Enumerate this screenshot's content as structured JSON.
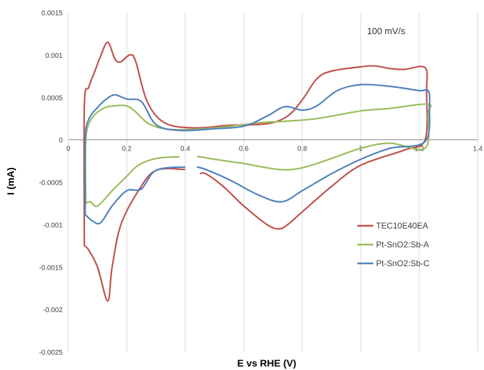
{
  "chart_data": {
    "type": "line",
    "title": "",
    "xlabel": "E vs RHE (V)",
    "ylabel": "I (mA)",
    "annotation": "100 mV/s",
    "xlim": [
      0,
      1.4
    ],
    "ylim": [
      -0.0025,
      0.0015
    ],
    "x_ticks": [
      0,
      0.2,
      0.4,
      0.6,
      0.8,
      1,
      1.2,
      1.4
    ],
    "x_tick_labels": [
      "0",
      "0.2",
      "0.4",
      "0.6",
      "0.8",
      "1",
      "1.2",
      "1.4"
    ],
    "y_ticks": [
      0.0015,
      0.001,
      0.0005,
      0,
      -0.0005,
      -0.001,
      -0.0015,
      -0.002,
      -0.0025
    ],
    "y_tick_labels": [
      "0.0015",
      "0.001",
      "0.0005",
      "0",
      "-0.0005",
      "-0.001",
      "-0.0015",
      "-0.002",
      "-0.0025"
    ],
    "grid": "vertical",
    "legend_position": "right",
    "series": [
      {
        "name": "TEC10E40EA",
        "color": "#c0504d",
        "points": [
          [
            0.055,
            -0.00125
          ],
          [
            0.055,
            0.0004
          ],
          [
            0.07,
            0.00062
          ],
          [
            0.09,
            0.0008
          ],
          [
            0.11,
            0.00098
          ],
          [
            0.135,
            0.00115
          ],
          [
            0.16,
            0.00095
          ],
          [
            0.18,
            0.00092
          ],
          [
            0.21,
            0.001
          ],
          [
            0.23,
            0.00093
          ],
          [
            0.27,
            0.00045
          ],
          [
            0.33,
            0.0002
          ],
          [
            0.43,
            0.00014
          ],
          [
            0.55,
            0.00017
          ],
          [
            0.68,
            0.00019
          ],
          [
            0.75,
            0.00028
          ],
          [
            0.8,
            0.00047
          ],
          [
            0.85,
            0.00072
          ],
          [
            0.9,
            0.00081
          ],
          [
            1.0,
            0.00086
          ],
          [
            1.05,
            0.00087
          ],
          [
            1.1,
            0.00084
          ],
          [
            1.15,
            0.00083
          ],
          [
            1.22,
            0.00085
          ],
          [
            1.225,
            0.00058
          ],
          [
            1.22,
            0.0
          ],
          [
            1.15,
            -0.00012
          ],
          [
            1.0,
            -0.0003
          ],
          [
            0.9,
            -0.00055
          ],
          [
            0.8,
            -0.00085
          ],
          [
            0.75,
            -0.001
          ],
          [
            0.72,
            -0.00105
          ],
          [
            0.68,
            -0.001
          ],
          [
            0.6,
            -0.00078
          ],
          [
            0.53,
            -0.00055
          ],
          [
            0.47,
            -0.0004
          ],
          [
            0.45,
            -0.0004
          ]
        ],
        "points_upper_left": [
          [
            0.4,
            -0.00035
          ],
          [
            0.3,
            -0.00036
          ],
          [
            0.24,
            -0.0006
          ],
          [
            0.18,
            -0.001
          ],
          [
            0.15,
            -0.0015
          ],
          [
            0.135,
            -0.0019
          ],
          [
            0.1,
            -0.0015
          ],
          [
            0.07,
            -0.0013
          ],
          [
            0.055,
            -0.00125
          ]
        ]
      },
      {
        "name": "Pt-SnO2:Sb-A",
        "color": "#9bbb59",
        "points": [
          [
            0.06,
            -0.00075
          ],
          [
            0.06,
            0.0
          ],
          [
            0.08,
            0.00025
          ],
          [
            0.12,
            0.00037
          ],
          [
            0.16,
            0.0004
          ],
          [
            0.2,
            0.0004
          ],
          [
            0.23,
            0.00033
          ],
          [
            0.28,
            0.00018
          ],
          [
            0.36,
            0.00012
          ],
          [
            0.5,
            0.00014
          ],
          [
            0.65,
            0.0002
          ],
          [
            0.75,
            0.00022
          ],
          [
            0.85,
            0.00025
          ],
          [
            1.0,
            0.00034
          ],
          [
            1.1,
            0.00037
          ],
          [
            1.23,
            0.00042
          ],
          [
            1.23,
            0.0003
          ],
          [
            1.22,
            -0.0001
          ],
          [
            1.1,
            -4e-05
          ],
          [
            1.0,
            -0.0001
          ],
          [
            0.9,
            -0.00022
          ],
          [
            0.8,
            -0.00033
          ],
          [
            0.72,
            -0.00035
          ],
          [
            0.6,
            -0.00028
          ],
          [
            0.5,
            -0.00023
          ],
          [
            0.45,
            -0.0002
          ],
          [
            0.44,
            -0.0002
          ]
        ],
        "points_upper_left": [
          [
            0.38,
            -0.0002
          ],
          [
            0.3,
            -0.00022
          ],
          [
            0.24,
            -0.0003
          ],
          [
            0.2,
            -0.00043
          ],
          [
            0.15,
            -0.0006
          ],
          [
            0.1,
            -0.00078
          ],
          [
            0.075,
            -0.00073
          ],
          [
            0.06,
            -0.00075
          ]
        ]
      },
      {
        "name": "Pt-SnO2:Sb-C",
        "color": "#4f81bd",
        "points": [
          [
            0.058,
            -0.00088
          ],
          [
            0.058,
            0.0
          ],
          [
            0.07,
            0.00024
          ],
          [
            0.1,
            0.00038
          ],
          [
            0.13,
            0.00048
          ],
          [
            0.16,
            0.00053
          ],
          [
            0.2,
            0.00048
          ],
          [
            0.25,
            0.00045
          ],
          [
            0.3,
            0.00018
          ],
          [
            0.38,
            0.00011
          ],
          [
            0.5,
            0.00013
          ],
          [
            0.6,
            0.00016
          ],
          [
            0.68,
            0.00028
          ],
          [
            0.74,
            0.00039
          ],
          [
            0.8,
            0.00035
          ],
          [
            0.85,
            0.0004
          ],
          [
            0.92,
            0.00058
          ],
          [
            1.0,
            0.00065
          ],
          [
            1.1,
            0.00063
          ],
          [
            1.2,
            0.00058
          ],
          [
            1.23,
            0.00058
          ],
          [
            1.235,
            0.0004
          ],
          [
            1.22,
            -2e-05
          ],
          [
            1.1,
            -0.0001
          ],
          [
            1.0,
            -0.00023
          ],
          [
            0.9,
            -0.0004
          ],
          [
            0.8,
            -0.0006
          ],
          [
            0.73,
            -0.00073
          ],
          [
            0.65,
            -0.00065
          ],
          [
            0.55,
            -0.00047
          ],
          [
            0.47,
            -0.00035
          ],
          [
            0.44,
            -0.00032
          ]
        ],
        "points_upper_left": [
          [
            0.4,
            -0.00032
          ],
          [
            0.3,
            -0.00036
          ],
          [
            0.25,
            -0.00058
          ],
          [
            0.2,
            -0.0006
          ],
          [
            0.15,
            -0.00078
          ],
          [
            0.11,
            -0.00098
          ],
          [
            0.08,
            -0.00095
          ],
          [
            0.058,
            -0.00088
          ]
        ]
      }
    ]
  }
}
